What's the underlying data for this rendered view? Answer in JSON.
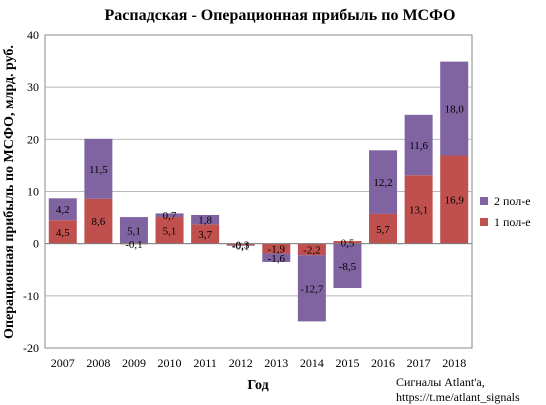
{
  "chart_data": {
    "type": "bar",
    "stacked": true,
    "title": "Распадская - Операционная прибыль по МСФО",
    "xlabel": "Год",
    "ylabel": "Операционная прибыль по МСФО, млрд. руб.",
    "categories": [
      "2007",
      "2008",
      "2009",
      "2010",
      "2011",
      "2012",
      "2013",
      "2014",
      "2015",
      "2016",
      "2017",
      "2018"
    ],
    "series": [
      {
        "name": "1 пол-е",
        "color": "#c0504d",
        "values": [
          4.5,
          8.6,
          -0.1,
          5.1,
          3.7,
          -0.3,
          -1.9,
          -2.2,
          0.5,
          5.7,
          13.1,
          16.9
        ],
        "labels": [
          "4,5",
          "8,6",
          "-0,1",
          "5,1",
          "3,7",
          "-0,3",
          "-1,9",
          "-2,2",
          "0,5",
          "5,7",
          "13,1",
          "16,9"
        ]
      },
      {
        "name": "2 пол-е",
        "color": "#8064a2",
        "values": [
          4.2,
          11.5,
          5.1,
          0.7,
          1.8,
          -0.1,
          -1.6,
          -12.7,
          -8.5,
          12.2,
          11.6,
          18.0
        ],
        "labels": [
          "4,2",
          "11,5",
          "5,1",
          "0,7",
          "1,8",
          "-0,1",
          "-1,6",
          "-12,7",
          "-8,5",
          "12,2",
          "11,6",
          "18,0"
        ]
      }
    ],
    "ylim": [
      -20,
      40
    ],
    "yticks": [
      "-20",
      "-10",
      "0",
      "10",
      "20",
      "30",
      "40"
    ],
    "grid": true,
    "legend_position": "right",
    "annotation": [
      "Сигналы Atlant'a,",
      "https://t.me/atlant_signals"
    ]
  }
}
